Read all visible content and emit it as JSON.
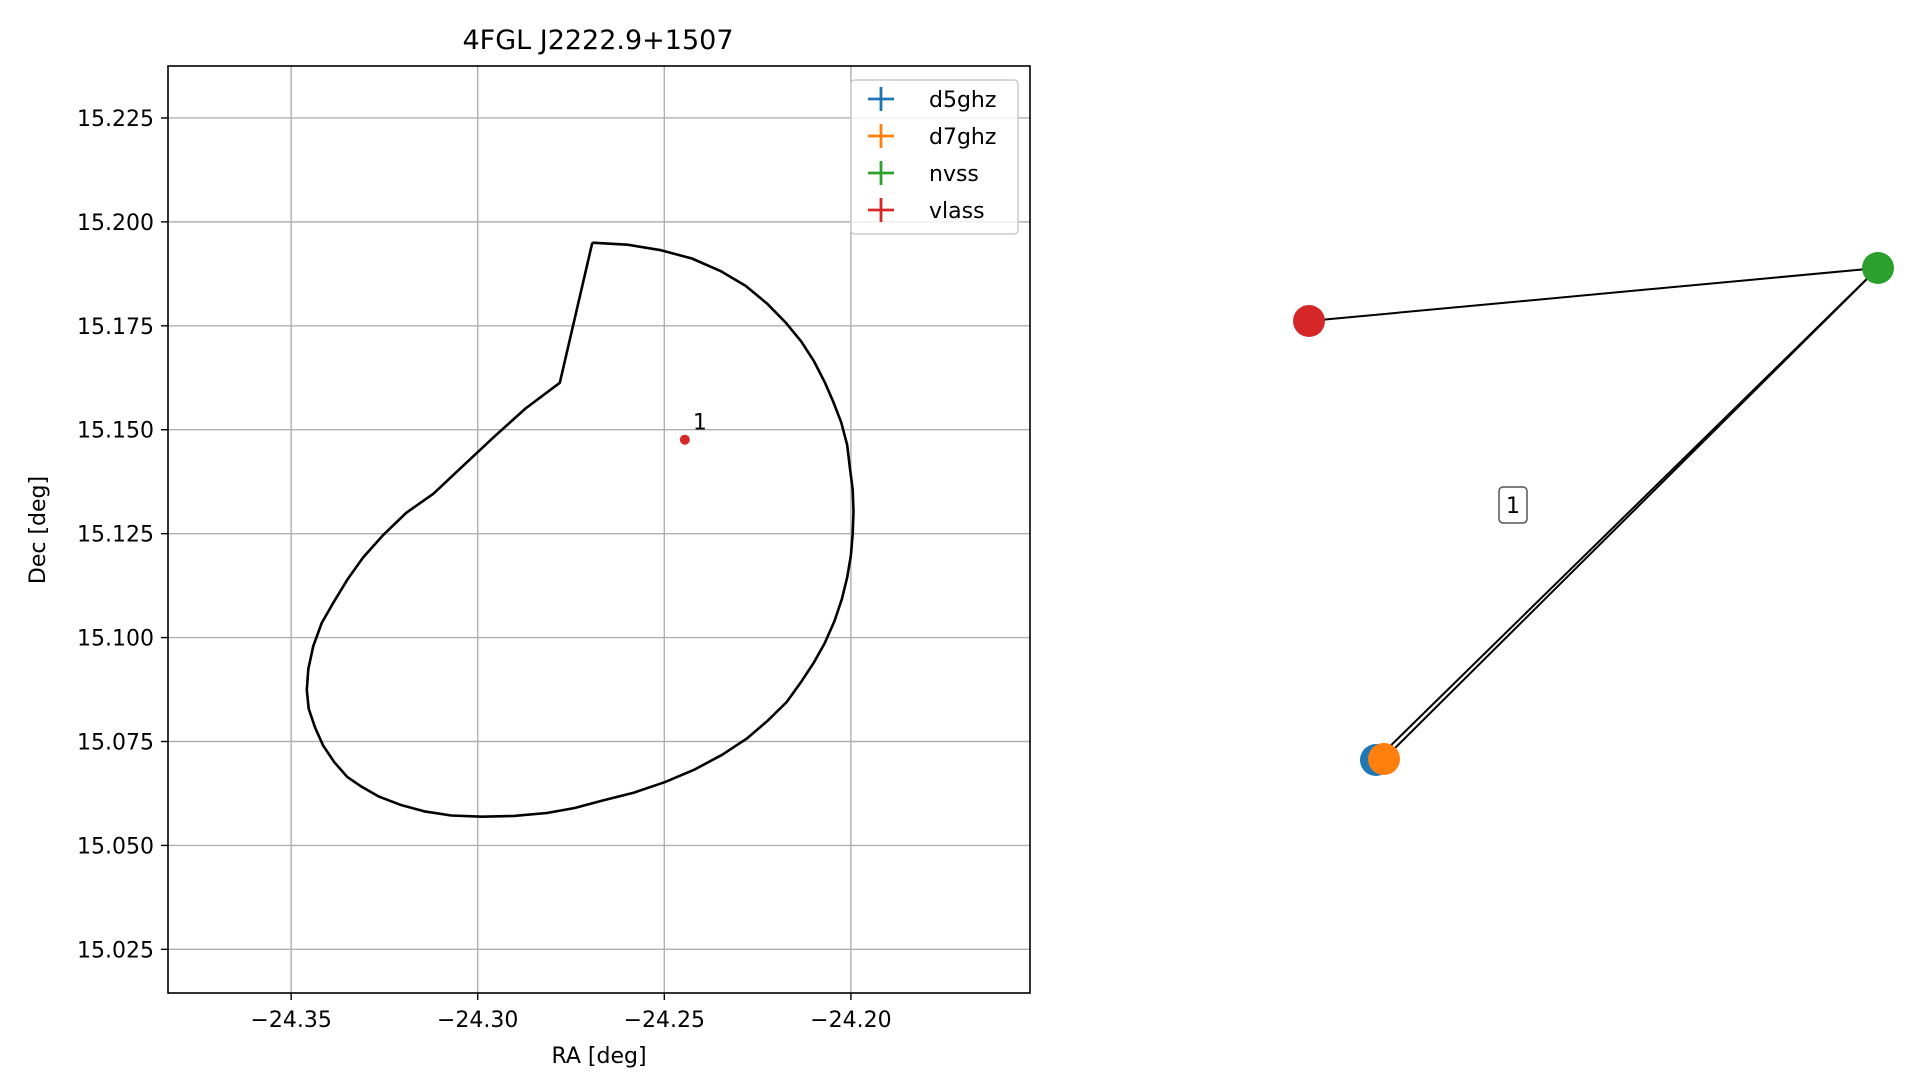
{
  "chart_data": [
    {
      "type": "scatter",
      "title": "4FGL J2222.9+1507",
      "xlabel": "RA [deg]",
      "ylabel": "Dec [deg]",
      "xlim": [
        -24.383,
        -24.152
      ],
      "ylim": [
        15.0145,
        15.2375
      ],
      "xticks": [
        -24.35,
        -24.3,
        -24.25,
        -24.2
      ],
      "xtick_labels": [
        "−24.35",
        "−24.30",
        "−24.25",
        "−24.20"
      ],
      "yticks": [
        15.025,
        15.05,
        15.075,
        15.1,
        15.125,
        15.15,
        15.175,
        15.2,
        15.225
      ],
      "ytick_labels": [
        "15.025",
        "15.050",
        "15.075",
        "15.100",
        "15.125",
        "15.150",
        "15.175",
        "15.200",
        "15.225"
      ],
      "grid": true,
      "legend_position": "upper right",
      "circle": {
        "ra_deg": [
          -24.2693,
          -24.2599,
          -24.2509,
          -24.2426,
          -24.235,
          -24.2282,
          -24.2224,
          -24.2174,
          -24.2133,
          -24.2099,
          -24.207,
          -24.2047,
          -24.2026,
          -24.201,
          -24.2003,
          -24.1995,
          -24.1993,
          -24.1995,
          -24.2,
          -24.201,
          -24.2024,
          -24.2044,
          -24.207,
          -24.2099,
          -24.2132,
          -24.2172,
          -24.2223,
          -24.2279,
          -24.2345,
          -24.2418,
          -24.2499,
          -24.2581,
          -24.2665,
          -24.274,
          -24.2815,
          -24.2903,
          -24.2988,
          -24.3071,
          -24.3144,
          -24.3208,
          -24.3266,
          -24.3311,
          -24.335,
          -24.3384,
          -24.3414,
          -24.3436,
          -24.3453,
          -24.3458,
          -24.3454,
          -24.3441,
          -24.3418,
          -24.3385,
          -24.3349,
          -24.3307,
          -24.3253,
          -24.3192,
          -24.3119,
          -24.3037,
          -24.2955,
          -24.2872,
          -24.278,
          -24.2693
        ],
        "dec_deg": [
          15.195,
          15.1945,
          15.1932,
          15.1912,
          15.1882,
          15.1846,
          15.1803,
          15.1757,
          15.1712,
          15.1665,
          15.1614,
          15.1567,
          15.1518,
          15.1463,
          15.141,
          15.1356,
          15.1303,
          15.125,
          15.1198,
          15.1145,
          15.1093,
          15.104,
          15.0987,
          15.094,
          15.0895,
          15.0845,
          15.08,
          15.0757,
          15.0718,
          15.0683,
          15.0652,
          15.0627,
          15.0608,
          15.059,
          15.0578,
          15.0571,
          15.0569,
          15.0572,
          15.0582,
          15.0598,
          15.0618,
          15.0641,
          15.0665,
          15.07,
          15.074,
          15.0784,
          15.0829,
          15.0874,
          15.0924,
          15.0979,
          15.1035,
          15.1087,
          15.114,
          15.1193,
          15.1247,
          15.13,
          15.1346,
          15.1415,
          15.1484,
          15.1551,
          15.1613,
          15.195
        ]
      },
      "points": [
        {
          "label": "1",
          "ra": -24.2445,
          "dec": 15.1476,
          "color": "#d62728"
        }
      ],
      "legend": [
        {
          "name": "d5ghz",
          "color": "#1f77b4"
        },
        {
          "name": "d7ghz",
          "color": "#ff7f0e"
        },
        {
          "name": "nvss",
          "color": "#2ca02c"
        },
        {
          "name": "vlass",
          "color": "#d62728"
        }
      ]
    },
    {
      "type": "network",
      "nodes": [
        {
          "id": "vlass",
          "color": "#d62728"
        },
        {
          "id": "nvss",
          "color": "#2ca02c"
        },
        {
          "id": "d5ghz",
          "color": "#1f77b4"
        },
        {
          "id": "d7ghz",
          "color": "#ff7f0e"
        }
      ],
      "edges": [
        [
          "vlass",
          "nvss"
        ],
        [
          "nvss",
          "d5ghz"
        ],
        [
          "nvss",
          "d7ghz"
        ]
      ],
      "box_label": "1"
    }
  ]
}
